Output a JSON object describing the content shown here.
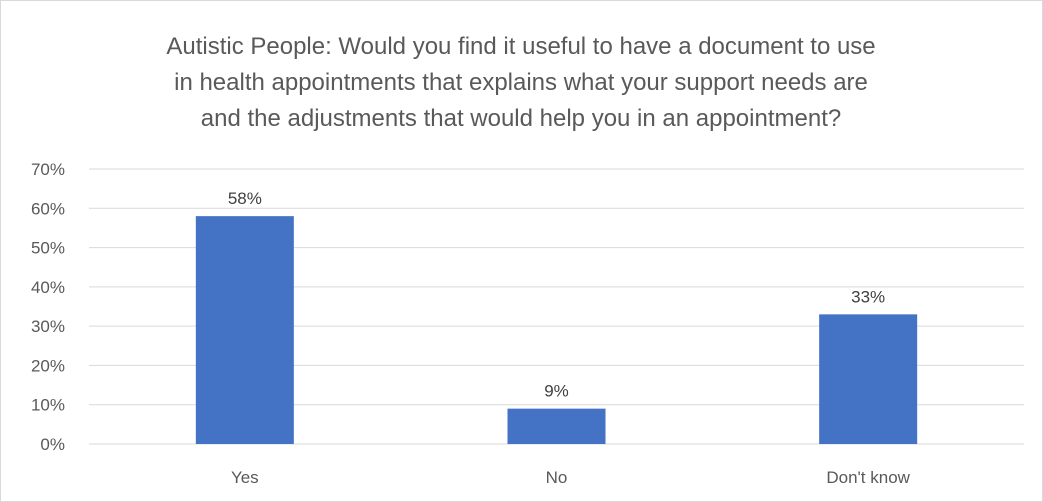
{
  "chart_data": {
    "type": "bar",
    "title": "Autistic People: Would you find it useful to have a document to use in health appointments that explains what your support needs are and the adjustments that would help you in an appointment?",
    "title_lines": [
      "Autistic People: Would you find it useful to have a document to use",
      "in health appointments that explains what your support needs are",
      "and the adjustments that would help you in an appointment?"
    ],
    "categories": [
      "Yes",
      "No",
      "Don't know"
    ],
    "values": [
      58,
      9,
      33
    ],
    "data_labels": [
      "58%",
      "9%",
      "33%"
    ],
    "ylim": [
      0,
      70
    ],
    "yticks": [
      0,
      10,
      20,
      30,
      40,
      50,
      60,
      70
    ],
    "ytick_labels": [
      "0%",
      "10%",
      "20%",
      "30%",
      "40%",
      "50%",
      "60%",
      "70%"
    ],
    "xlabel": "",
    "ylabel": "",
    "grid": true,
    "legend": "none",
    "bar_color": "#4472C4",
    "grid_color": "#D9D9D9"
  }
}
